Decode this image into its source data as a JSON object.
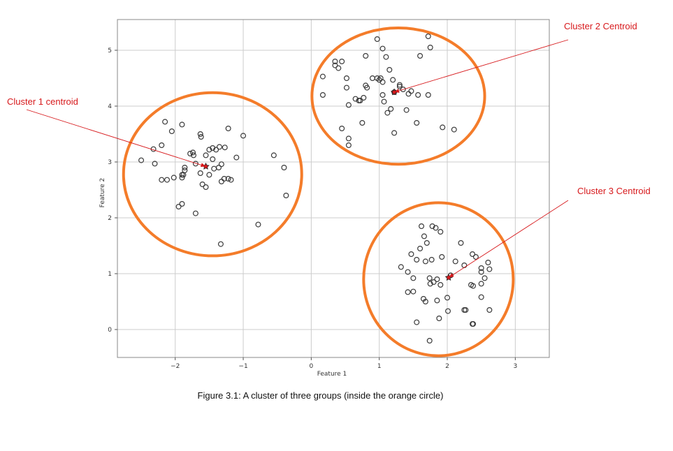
{
  "caption": "Figure 3.1:  A cluster of three  groups (inside the orange circle)",
  "colors": {
    "points_edge": "#3a3a3a",
    "circle": "#f47c2a",
    "centroid": "#d7191c",
    "annotation": "#d7191c",
    "grid": "#cccccc",
    "frame": "#888888"
  },
  "chart_data": {
    "type": "scatter",
    "title": "",
    "xlabel": "Feature 1",
    "ylabel": "Feature 2",
    "xlim": [
      -2.85,
      3.5
    ],
    "ylim": [
      -0.5,
      5.55
    ],
    "xticks": [
      -2,
      -1,
      0,
      1,
      2,
      3
    ],
    "xtick_labels": [
      "−2",
      "−1",
      "0",
      "1",
      "2",
      "3"
    ],
    "yticks": [
      0,
      1,
      2,
      3,
      4,
      5
    ],
    "ytick_labels": [
      "0",
      "1",
      "2",
      "3",
      "4",
      "5"
    ],
    "grid": true,
    "legend": "none",
    "series": [
      {
        "values": [
          [
            -2.5,
            3.03
          ],
          [
            -2.3,
            2.97
          ],
          [
            -2.2,
            2.68
          ],
          [
            -2.12,
            2.68
          ],
          [
            -2.02,
            2.72
          ],
          [
            -1.9,
            2.72
          ],
          [
            -1.9,
            2.77
          ],
          [
            -1.88,
            2.77
          ],
          [
            -1.86,
            2.9
          ],
          [
            -1.86,
            2.85
          ],
          [
            -1.78,
            3.15
          ],
          [
            -1.74,
            3.17
          ],
          [
            -1.73,
            3.12
          ],
          [
            -1.7,
            2.97
          ],
          [
            -1.63,
            3.5
          ],
          [
            -1.62,
            3.45
          ],
          [
            -1.63,
            2.8
          ],
          [
            -1.55,
            3.12
          ],
          [
            -1.5,
            3.22
          ],
          [
            -1.45,
            3.25
          ],
          [
            -1.4,
            3.22
          ],
          [
            -1.35,
            3.27
          ],
          [
            -1.27,
            3.26
          ],
          [
            -1.22,
            3.6
          ],
          [
            -1.1,
            3.08
          ],
          [
            -1.45,
            3.05
          ],
          [
            -1.43,
            2.88
          ],
          [
            -1.36,
            2.9
          ],
          [
            -1.32,
            2.96
          ],
          [
            -1.28,
            2.7
          ],
          [
            -1.22,
            2.7
          ],
          [
            -1.18,
            2.68
          ],
          [
            -2.05,
            3.55
          ],
          [
            -2.15,
            3.72
          ],
          [
            -2.2,
            3.3
          ],
          [
            -2.32,
            3.23
          ],
          [
            -1.9,
            3.67
          ],
          [
            -1.6,
            2.6
          ],
          [
            -1.55,
            2.55
          ],
          [
            -1.5,
            2.77
          ],
          [
            -1.95,
            2.2
          ],
          [
            -1.9,
            2.25
          ],
          [
            -1.7,
            2.08
          ],
          [
            -1.32,
            2.65
          ],
          [
            -1.0,
            3.47
          ],
          [
            -0.55,
            3.12
          ],
          [
            -0.4,
            2.9
          ],
          [
            -0.37,
            2.4
          ],
          [
            -0.78,
            1.88
          ],
          [
            -1.33,
            1.53
          ]
        ]
      },
      {
        "values": [
          [
            0.17,
            4.53
          ],
          [
            0.17,
            4.2
          ],
          [
            0.35,
            4.8
          ],
          [
            0.35,
            4.73
          ],
          [
            0.4,
            4.68
          ],
          [
            0.45,
            4.8
          ],
          [
            0.52,
            4.5
          ],
          [
            0.52,
            4.33
          ],
          [
            0.55,
            4.02
          ],
          [
            0.65,
            4.13
          ],
          [
            0.7,
            4.1
          ],
          [
            0.72,
            4.1
          ],
          [
            0.77,
            4.15
          ],
          [
            0.8,
            4.37
          ],
          [
            0.82,
            4.33
          ],
          [
            0.8,
            4.9
          ],
          [
            0.9,
            4.5
          ],
          [
            0.97,
            4.5
          ],
          [
            1.0,
            4.47
          ],
          [
            1.02,
            4.5
          ],
          [
            1.05,
            4.43
          ],
          [
            0.97,
            5.2
          ],
          [
            1.05,
            5.03
          ],
          [
            1.1,
            4.88
          ],
          [
            1.15,
            4.65
          ],
          [
            1.05,
            4.2
          ],
          [
            1.07,
            4.08
          ],
          [
            1.12,
            3.88
          ],
          [
            1.17,
            3.95
          ],
          [
            1.2,
            4.47
          ],
          [
            1.22,
            4.25
          ],
          [
            1.3,
            4.35
          ],
          [
            1.35,
            4.3
          ],
          [
            1.43,
            4.22
          ],
          [
            1.47,
            4.27
          ],
          [
            1.57,
            4.2
          ],
          [
            1.72,
            4.2
          ],
          [
            1.4,
            3.93
          ],
          [
            1.55,
            3.7
          ],
          [
            1.6,
            4.9
          ],
          [
            1.72,
            5.25
          ],
          [
            1.75,
            5.05
          ],
          [
            0.45,
            3.6
          ],
          [
            0.55,
            3.42
          ],
          [
            0.55,
            3.3
          ],
          [
            0.75,
            3.7
          ],
          [
            1.22,
            3.52
          ],
          [
            1.93,
            3.62
          ],
          [
            2.1,
            3.58
          ],
          [
            1.3,
            4.38
          ]
        ]
      },
      {
        "values": [
          [
            1.62,
            1.85
          ],
          [
            1.66,
            1.67
          ],
          [
            1.78,
            1.85
          ],
          [
            1.83,
            1.82
          ],
          [
            1.9,
            1.75
          ],
          [
            2.2,
            1.55
          ],
          [
            1.7,
            1.55
          ],
          [
            1.6,
            1.45
          ],
          [
            1.47,
            1.35
          ],
          [
            1.55,
            1.25
          ],
          [
            1.68,
            1.22
          ],
          [
            1.77,
            1.25
          ],
          [
            1.92,
            1.3
          ],
          [
            1.32,
            1.12
          ],
          [
            1.42,
            1.03
          ],
          [
            1.5,
            0.92
          ],
          [
            1.74,
            0.92
          ],
          [
            1.8,
            0.85
          ],
          [
            1.85,
            0.9
          ],
          [
            1.9,
            0.8
          ],
          [
            1.75,
            0.82
          ],
          [
            1.5,
            0.68
          ],
          [
            1.42,
            0.67
          ],
          [
            1.65,
            0.55
          ],
          [
            1.68,
            0.5
          ],
          [
            1.85,
            0.52
          ],
          [
            2.0,
            0.57
          ],
          [
            2.01,
            0.33
          ],
          [
            1.88,
            0.2
          ],
          [
            1.55,
            0.13
          ],
          [
            1.74,
            -0.2
          ],
          [
            2.05,
            0.97
          ],
          [
            2.12,
            1.22
          ],
          [
            2.25,
            1.15
          ],
          [
            2.37,
            1.35
          ],
          [
            2.42,
            1.3
          ],
          [
            2.5,
            1.1
          ],
          [
            2.6,
            1.2
          ],
          [
            2.62,
            1.08
          ],
          [
            2.5,
            1.03
          ],
          [
            2.55,
            0.92
          ],
          [
            2.5,
            0.82
          ],
          [
            2.35,
            0.8
          ],
          [
            2.38,
            0.78
          ],
          [
            2.5,
            0.58
          ],
          [
            2.27,
            0.35
          ],
          [
            2.25,
            0.35
          ],
          [
            2.37,
            0.1
          ],
          [
            2.38,
            0.1
          ],
          [
            2.62,
            0.35
          ]
        ]
      }
    ],
    "centroids": [
      [
        -1.55,
        2.92
      ],
      [
        1.22,
        4.25
      ],
      [
        2.02,
        0.93
      ]
    ],
    "cluster_circles": [
      {
        "center": [
          -1.45,
          2.78
        ],
        "radius": [
          1.31,
          1.46
        ]
      },
      {
        "center": [
          1.28,
          4.18
        ],
        "radius": [
          1.27,
          1.22
        ]
      },
      {
        "center": [
          1.87,
          0.9
        ],
        "radius": [
          1.1,
          1.37
        ]
      }
    ],
    "annotations": [
      {
        "text": "Cluster 1 centroid",
        "target_cluster": 0
      },
      {
        "text": "Cluster 2 Centroid",
        "target_cluster": 1
      },
      {
        "text": "Cluster 3 Centroid",
        "target_cluster": 2
      }
    ]
  }
}
